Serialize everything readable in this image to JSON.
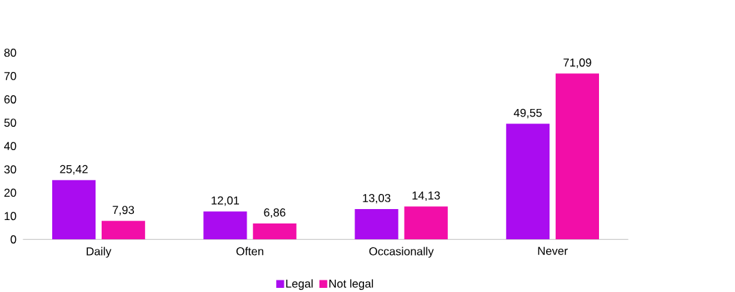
{
  "chart_data": {
    "type": "bar",
    "categories": [
      "Daily",
      "Often",
      "Occasionally",
      "Never"
    ],
    "series": [
      {
        "name": "Legal",
        "color": "#aa0cf0",
        "values": [
          25.42,
          12.01,
          13.03,
          49.55
        ],
        "value_labels": [
          "25,42",
          "12,01",
          "13,03",
          "49,55"
        ]
      },
      {
        "name": "Not legal",
        "color": "#f20ea8",
        "values": [
          7.93,
          6.86,
          14.13,
          71.09
        ],
        "value_labels": [
          "7,93",
          "6,86",
          "14,13",
          "71,09"
        ]
      }
    ],
    "ylim": [
      0,
      80
    ],
    "yticks": [
      0,
      10,
      20,
      30,
      40,
      50,
      60,
      70,
      80
    ],
    "grid": false,
    "legend": "bottom"
  }
}
